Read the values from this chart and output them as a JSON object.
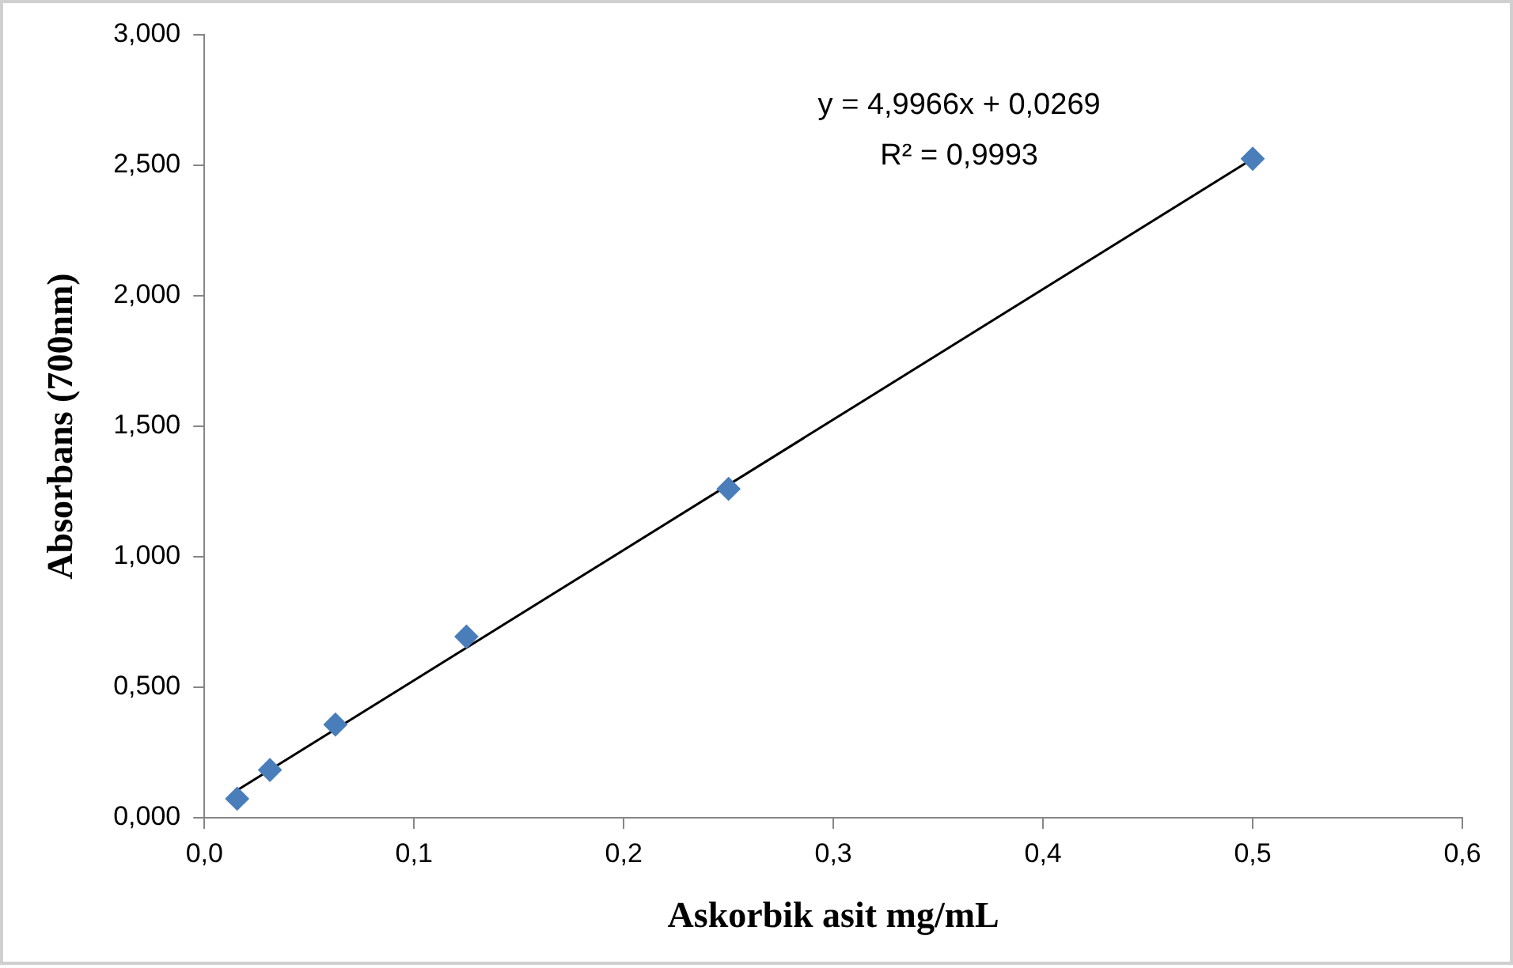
{
  "chart_data": {
    "type": "scatter",
    "xlabel": "Askorbik asit mg/mL",
    "ylabel": "Absorbans (700nm)",
    "x": [
      0.015625,
      0.03125,
      0.0625,
      0.125,
      0.25,
      0.5
    ],
    "series": [
      {
        "color": "#4a7ebb",
        "marker": "diamond",
        "values": [
          0.073,
          0.183,
          0.357,
          0.694,
          1.26,
          2.525
        ]
      },
      {
        "type": "line",
        "color": "#000000",
        "marker": "none",
        "x": [
          0.015625,
          0.5
        ],
        "values": [
          0.105,
          2.525
        ]
      }
    ],
    "xlim": [
      0,
      0.6
    ],
    "xticks": [
      {
        "value": 0,
        "label": "0,0"
      },
      {
        "value": 0.1,
        "label": "0,1"
      },
      {
        "value": 0.2,
        "label": "0,2"
      },
      {
        "value": 0.3,
        "label": "0,3"
      },
      {
        "value": 0.4,
        "label": "0,4"
      },
      {
        "value": 0.5,
        "label": "0,5"
      },
      {
        "value": 0.6,
        "label": "0,6"
      }
    ],
    "ylim": [
      0,
      3
    ],
    "yticks": [
      {
        "value": 0,
        "label": "0,000"
      },
      {
        "value": 0.5,
        "label": "0,500"
      },
      {
        "value": 1,
        "label": "1,000"
      },
      {
        "value": 1.5,
        "label": "1,500"
      },
      {
        "value": 2,
        "label": "2,000"
      },
      {
        "value": 2.5,
        "label": "2,500"
      },
      {
        "value": 3,
        "label": "3,000"
      }
    ],
    "annotations": [
      "y = 4,9966x + 0,0269",
      "R² = 0,9993"
    ],
    "grid": false,
    "legend": false
  }
}
